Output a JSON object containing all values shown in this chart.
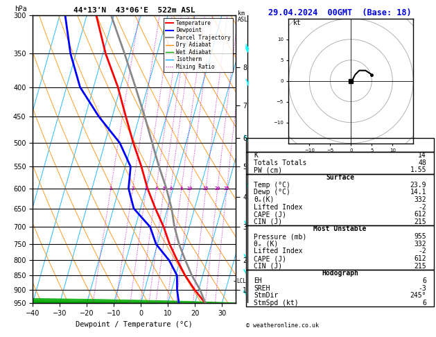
{
  "title_left": "44°13'N  43°06'E  522m ASL",
  "title_right": "29.04.2024  00GMT  (Base: 18)",
  "xlabel": "Dewpoint / Temperature (°C)",
  "copyright": "© weatheronline.co.uk",
  "lcl_label": "LCL",
  "pressure_major": [
    300,
    350,
    400,
    450,
    500,
    550,
    600,
    650,
    700,
    750,
    800,
    850,
    900,
    950
  ],
  "xlim": [
    -40,
    35
  ],
  "pmin": 300,
  "pmax": 950,
  "temp_color": "#ff0000",
  "dewp_color": "#0000ff",
  "parcel_color": "#888888",
  "dry_adiabat_color": "#ff8c00",
  "wet_adiabat_color": "#00aa00",
  "isotherm_color": "#00aaff",
  "mixing_ratio_color": "#cc00cc",
  "background_color": "#ffffff",
  "table_K": "14",
  "table_TT": "48",
  "table_PW": "1.55",
  "surf_temp": "23.9",
  "surf_dewp": "14.1",
  "surf_thetae": "332",
  "surf_li": "-2",
  "surf_cape": "612",
  "surf_cin": "215",
  "mu_pressure": "955",
  "mu_thetae": "332",
  "mu_li": "-2",
  "mu_cape": "612",
  "mu_cin": "215",
  "hodo_eh": "6",
  "hodo_sreh": "-3",
  "hodo_stmdir": "245°",
  "hodo_stmspd": "6",
  "mixing_ratio_vals": [
    1,
    2,
    3,
    4,
    5,
    6,
    8,
    10,
    15,
    20,
    25
  ],
  "km_ticks": [
    1,
    2,
    3,
    4,
    5,
    6,
    7,
    8
  ],
  "km_pressures": [
    900,
    800,
    700,
    620,
    550,
    490,
    430,
    370
  ],
  "temp_profile_pressure": [
    950,
    900,
    850,
    800,
    750,
    700,
    650,
    600,
    550,
    500,
    450,
    400,
    350,
    300
  ],
  "temp_profile_temp": [
    23.9,
    18.5,
    13.5,
    9.0,
    4.5,
    0.5,
    -4.5,
    -9.5,
    -14.0,
    -19.5,
    -25.0,
    -31.0,
    -39.0,
    -46.5
  ],
  "dewp_profile_pressure": [
    950,
    900,
    850,
    800,
    750,
    700,
    650,
    600,
    550,
    500,
    450,
    400,
    350,
    300
  ],
  "dewp_profile_temp": [
    14.1,
    12.0,
    10.5,
    6.0,
    -0.5,
    -4.5,
    -12.5,
    -16.5,
    -18.0,
    -24.5,
    -35.0,
    -45.0,
    -52.0,
    -58.0
  ],
  "parcel_profile_pressure": [
    950,
    900,
    850,
    800,
    750,
    700,
    650,
    600,
    550,
    500,
    450,
    400,
    350,
    300
  ],
  "parcel_profile_temp": [
    23.9,
    20.5,
    16.0,
    12.0,
    8.0,
    4.5,
    1.5,
    -2.5,
    -7.5,
    -12.5,
    -18.0,
    -24.5,
    -32.0,
    -41.0
  ],
  "lcl_pressure": 870,
  "skew_factor": 30,
  "wind_barb_pressures": [
    300,
    350,
    400,
    500,
    600,
    700,
    800,
    850,
    925
  ],
  "wind_barb_u": [
    -5,
    -3,
    -2,
    2,
    1,
    2,
    3,
    4,
    3
  ],
  "wind_barb_v": [
    25,
    15,
    8,
    5,
    3,
    2,
    2,
    2,
    1
  ],
  "hodo_u": [
    0.0,
    0.5,
    1.0,
    2.0,
    3.5,
    5.0
  ],
  "hodo_v": [
    0.0,
    0.5,
    1.5,
    2.5,
    2.5,
    1.5
  ]
}
